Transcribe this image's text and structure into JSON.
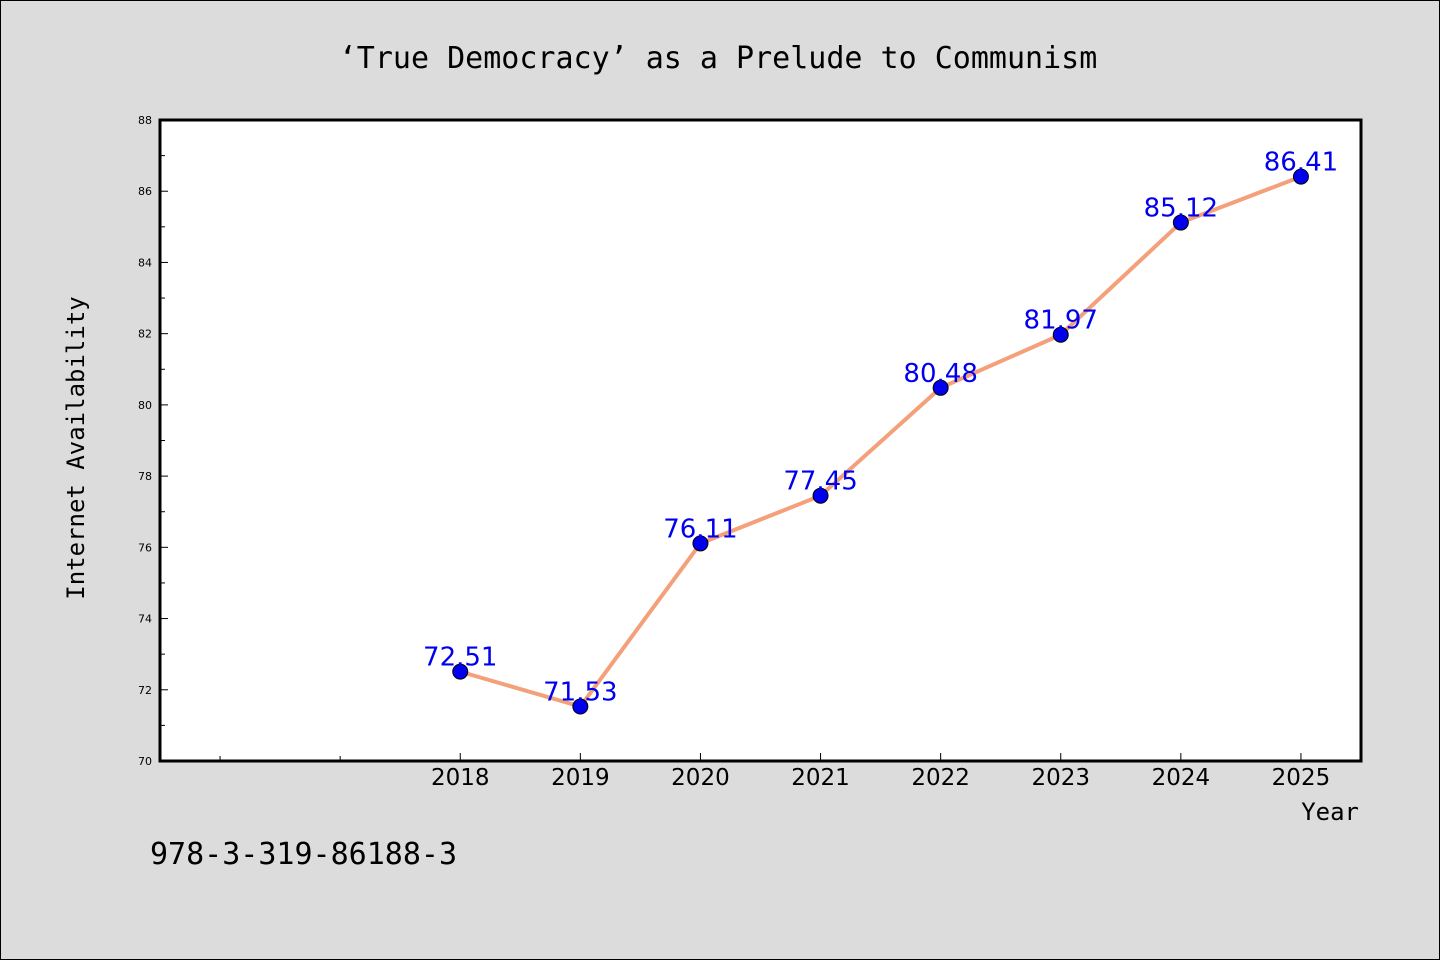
{
  "chart_data": {
    "type": "line",
    "title": "‘True Democracy’  as a Prelude to Communism",
    "xlabel": "Year",
    "ylabel": "Internet Availability",
    "x": [
      "2018",
      "2019",
      "2020",
      "2021",
      "2022",
      "2023",
      "2024",
      "2025"
    ],
    "series": [
      {
        "values": [
          72.51,
          71.53,
          76.11,
          77.45,
          80.48,
          81.97,
          85.12,
          86.41
        ]
      }
    ],
    "data_labels": [
      "72.51",
      "71.53",
      "76.11",
      "77.45",
      "80.48",
      "81.97",
      "85.12",
      "86.41"
    ],
    "ylim": [
      70,
      88
    ],
    "yticks": [
      70,
      72,
      74,
      76,
      78,
      80,
      82,
      84,
      86,
      88
    ],
    "xlim": [
      2015.5,
      2025.5
    ],
    "minor_xticks": [
      2016,
      2017
    ],
    "grid": false,
    "legend": "none",
    "colors": {
      "line": "#f4a07a",
      "marker": "#0000ee",
      "data_label": "#0000ee",
      "background": "#dcdcdc",
      "plot_background": "#ffffff"
    }
  },
  "footnote": "978-3-319-86188-3"
}
